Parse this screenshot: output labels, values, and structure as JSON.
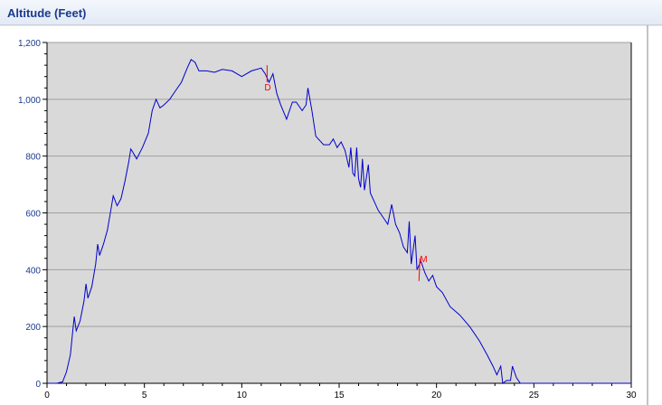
{
  "panel": {
    "title": "Altitude (Feet)"
  },
  "colors": {
    "plot_background": "#d9d9d9",
    "grid": "#a0a0a0",
    "series_line": "#0000cc",
    "marker": "#ff0000",
    "y_tick_text": "#1a3a8e"
  },
  "chart_data": {
    "type": "line",
    "title": "Altitude (Feet)",
    "xlabel": "",
    "ylabel": "",
    "xlim": [
      0,
      30
    ],
    "ylim": [
      0,
      1200
    ],
    "x_ticks": [
      0,
      5,
      10,
      15,
      20,
      25,
      30
    ],
    "y_ticks": [
      0,
      200,
      400,
      600,
      800,
      1000,
      1200
    ],
    "x_tick_labels": [
      "0",
      "5",
      "10",
      "15",
      "20",
      "25",
      "30"
    ],
    "y_tick_labels": [
      "0",
      "200",
      "400",
      "600",
      "800",
      "1,000",
      "1,200"
    ],
    "grid": true,
    "series": [
      {
        "points": [
          [
            0.5,
            0
          ],
          [
            0.8,
            5
          ],
          [
            1.0,
            40
          ],
          [
            1.2,
            100
          ],
          [
            1.3,
            170
          ],
          [
            1.4,
            235
          ],
          [
            1.5,
            185
          ],
          [
            1.7,
            220
          ],
          [
            1.9,
            290
          ],
          [
            2.0,
            350
          ],
          [
            2.1,
            300
          ],
          [
            2.3,
            340
          ],
          [
            2.5,
            420
          ],
          [
            2.6,
            490
          ],
          [
            2.7,
            450
          ],
          [
            2.9,
            490
          ],
          [
            3.1,
            540
          ],
          [
            3.3,
            620
          ],
          [
            3.4,
            660
          ],
          [
            3.6,
            625
          ],
          [
            3.8,
            650
          ],
          [
            4.0,
            710
          ],
          [
            4.2,
            780
          ],
          [
            4.3,
            825
          ],
          [
            4.4,
            815
          ],
          [
            4.6,
            790
          ],
          [
            4.9,
            830
          ],
          [
            5.2,
            880
          ],
          [
            5.4,
            960
          ],
          [
            5.6,
            1000
          ],
          [
            5.8,
            970
          ],
          [
            6.0,
            980
          ],
          [
            6.3,
            1000
          ],
          [
            6.6,
            1030
          ],
          [
            6.9,
            1060
          ],
          [
            7.2,
            1110
          ],
          [
            7.4,
            1140
          ],
          [
            7.6,
            1130
          ],
          [
            7.8,
            1100
          ],
          [
            8.2,
            1100
          ],
          [
            8.6,
            1095
          ],
          [
            9.0,
            1105
          ],
          [
            9.5,
            1100
          ],
          [
            10.0,
            1080
          ],
          [
            10.5,
            1100
          ],
          [
            11.0,
            1110
          ],
          [
            11.2,
            1090
          ],
          [
            11.4,
            1060
          ],
          [
            11.6,
            1090
          ],
          [
            11.8,
            1020
          ],
          [
            12.0,
            980
          ],
          [
            12.3,
            930
          ],
          [
            12.6,
            990
          ],
          [
            12.8,
            990
          ],
          [
            13.1,
            960
          ],
          [
            13.3,
            980
          ],
          [
            13.4,
            1040
          ],
          [
            13.6,
            960
          ],
          [
            13.8,
            870
          ],
          [
            14.2,
            840
          ],
          [
            14.5,
            840
          ],
          [
            14.7,
            860
          ],
          [
            14.9,
            830
          ],
          [
            15.1,
            850
          ],
          [
            15.3,
            820
          ],
          [
            15.5,
            760
          ],
          [
            15.6,
            830
          ],
          [
            15.7,
            740
          ],
          [
            15.8,
            730
          ],
          [
            15.9,
            830
          ],
          [
            16.0,
            720
          ],
          [
            16.1,
            690
          ],
          [
            16.2,
            790
          ],
          [
            16.3,
            680
          ],
          [
            16.5,
            770
          ],
          [
            16.6,
            670
          ],
          [
            16.8,
            640
          ],
          [
            17.0,
            610
          ],
          [
            17.2,
            590
          ],
          [
            17.5,
            560
          ],
          [
            17.7,
            630
          ],
          [
            17.9,
            560
          ],
          [
            18.1,
            530
          ],
          [
            18.3,
            480
          ],
          [
            18.5,
            460
          ],
          [
            18.6,
            570
          ],
          [
            18.7,
            420
          ],
          [
            18.9,
            520
          ],
          [
            19.0,
            400
          ],
          [
            19.2,
            430
          ],
          [
            19.4,
            390
          ],
          [
            19.6,
            360
          ],
          [
            19.8,
            380
          ],
          [
            20.0,
            340
          ],
          [
            20.3,
            320
          ],
          [
            20.7,
            270
          ],
          [
            21.2,
            240
          ],
          [
            21.7,
            200
          ],
          [
            22.2,
            150
          ],
          [
            22.6,
            100
          ],
          [
            22.9,
            60
          ],
          [
            23.1,
            30
          ],
          [
            23.3,
            60
          ],
          [
            23.4,
            0
          ],
          [
            23.6,
            10
          ],
          [
            23.8,
            10
          ],
          [
            23.9,
            60
          ],
          [
            24.1,
            20
          ],
          [
            24.3,
            0
          ]
        ]
      }
    ],
    "annotations": [
      {
        "label": "D",
        "x": 11.3,
        "y1": 1060,
        "y2": 1120
      },
      {
        "label": "M",
        "x": 19.1,
        "y1": 360,
        "y2": 440
      }
    ]
  }
}
